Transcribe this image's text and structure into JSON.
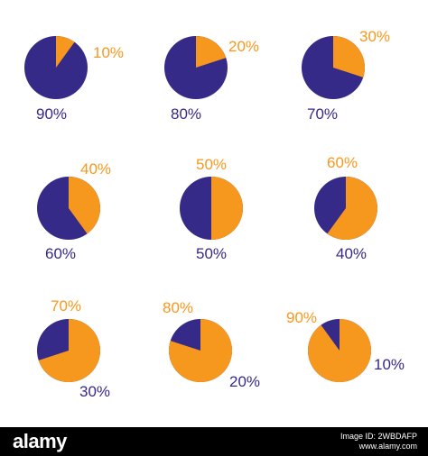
{
  "colors": {
    "orange": "#f7981e",
    "navy": "#362a88",
    "background": "#ffffff",
    "footer": "#000000",
    "footer_text": "#ffffff"
  },
  "chart_data": [
    {
      "type": "pie",
      "slices": [
        {
          "label": "10%",
          "value": 10,
          "color": "orange"
        },
        {
          "label": "90%",
          "value": 90,
          "color": "navy"
        }
      ]
    },
    {
      "type": "pie",
      "slices": [
        {
          "label": "20%",
          "value": 20,
          "color": "orange"
        },
        {
          "label": "80%",
          "value": 80,
          "color": "navy"
        }
      ]
    },
    {
      "type": "pie",
      "slices": [
        {
          "label": "30%",
          "value": 30,
          "color": "orange"
        },
        {
          "label": "70%",
          "value": 70,
          "color": "navy"
        }
      ]
    },
    {
      "type": "pie",
      "slices": [
        {
          "label": "40%",
          "value": 40,
          "color": "orange"
        },
        {
          "label": "60%",
          "value": 60,
          "color": "navy"
        }
      ]
    },
    {
      "type": "pie",
      "slices": [
        {
          "label": "50%",
          "value": 50,
          "color": "orange"
        },
        {
          "label": "50%",
          "value": 50,
          "color": "navy"
        }
      ]
    },
    {
      "type": "pie",
      "slices": [
        {
          "label": "60%",
          "value": 60,
          "color": "orange"
        },
        {
          "label": "40%",
          "value": 40,
          "color": "navy"
        }
      ]
    },
    {
      "type": "pie",
      "slices": [
        {
          "label": "70%",
          "value": 70,
          "color": "orange"
        },
        {
          "label": "30%",
          "value": 30,
          "color": "navy"
        }
      ]
    },
    {
      "type": "pie",
      "slices": [
        {
          "label": "80%",
          "value": 80,
          "color": "orange"
        },
        {
          "label": "20%",
          "value": 20,
          "color": "navy"
        }
      ]
    },
    {
      "type": "pie",
      "slices": [
        {
          "label": "90%",
          "value": 90,
          "color": "orange"
        },
        {
          "label": "10%",
          "value": 10,
          "color": "navy"
        }
      ]
    }
  ],
  "footer": {
    "logo": "alamy",
    "image_id": "Image ID: 2WBDAFP",
    "site": "www.alamy.com"
  }
}
